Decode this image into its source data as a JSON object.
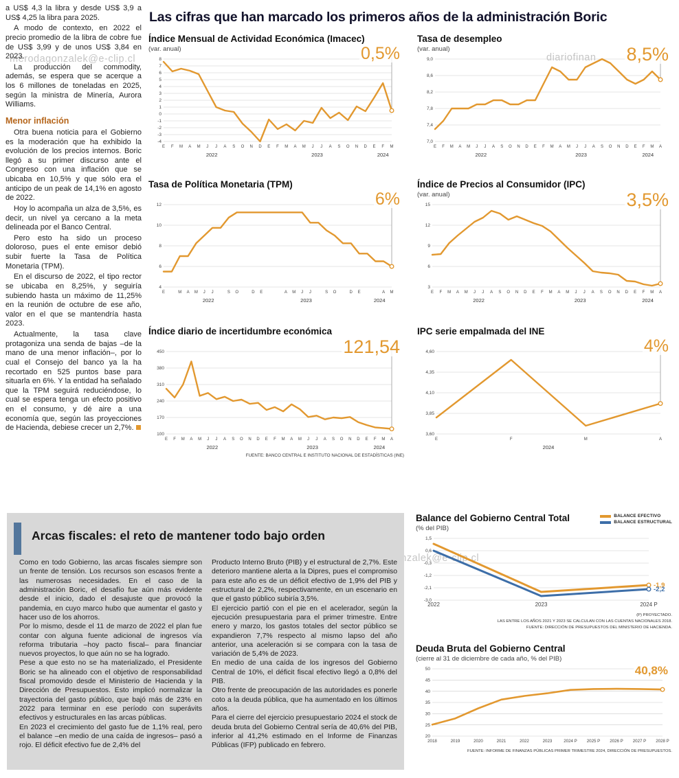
{
  "colors": {
    "accent_orange": "#E2982F",
    "accent_blue": "#3D6EA8",
    "panel_gray": "#D8D8D8",
    "header_blue": "#53769C"
  },
  "watermarks": {
    "wm1": "merodagonzalek@e-clip.cl",
    "wm2": "diariofinan",
    "wm3": "ero#dagonzalek@e-clip.cl"
  },
  "left_column": {
    "p1": "a US$ 4,3 la libra y desde US$ 3,9 a US$ 4,25 la libra para 2025.",
    "p2": "A modo de contexto, en 2022 el precio promedio de la libra de cobre fue de US$ 3,99 y de unos US$ 3,84 en 2023.",
    "p3": "La producción del commodity, además, se espera que se acerque a los 6 millones de toneladas en 2025, según la ministra de Minería, Aurora Williams.",
    "heading": "Menor inflación",
    "p4": "Otra buena noticia para el Gobierno es la moderación que ha exhibido la evolución de los precios internos. Boric llegó a su primer discurso ante el Congreso con una inflación que se ubicaba en 10,5% y que sólo era el anticipo de un peak de 14,1% en agosto de 2022.",
    "p5": "Hoy lo acompaña un alza de 3,5%, es decir, un nivel ya cercano a la meta delineada por el Banco Central.",
    "p6": "Pero esto ha sido un proceso doloroso, pues el ente emisor debió subir fuerte la Tasa de Política Monetaria (TPM).",
    "p7": "En el discurso de 2022, el tipo rector se ubicaba en 8,25%, y seguiría subiendo hasta un máximo de 11,25% en la reunión de octubre de ese año, valor en el que se mantendría hasta 2023.",
    "p8": "Actualmente, la tasa clave protagoniza una senda de bajas –de la mano de una menor inflación–, por lo cual el Consejo del banco ya la ha recortado en 525 puntos base para situarla en 6%. Y la entidad ha señalado que la TPM seguirá reduciéndose, lo cual se espera tenga un efecto positivo en el consumo, y dé aire a una economía que, según las proyecciones de Hacienda, debiese crecer un 2,7%."
  },
  "main": {
    "title": "Las cifras que han marcado los primeros años de la administración Boric",
    "source": "FUENTE: BANCO CENTRAL E INSTITUTO NACIONAL DE ESTADÍSTICAS (INE)"
  },
  "fiscal": {
    "title": "Arcas fiscales: el reto de mantener todo bajo orden",
    "c1p1": "Como en todo Gobierno, las arcas fiscales siempre son un frente de tensión. Los recursos son escasos frente a las numerosas necesidades. En el caso de la administración Boric, el desafío fue aún más evidente desde el inicio, dado el desajuste que provocó la pandemia, en cuyo marco hubo que aumentar el gasto y hacer uso de los ahorros.",
    "c1p2": "Por lo mismo, desde el 11 de marzo de 2022 el plan fue contar con alguna fuente adicional de ingresos vía reforma tributaria –hoy pacto fiscal– para financiar nuevos proyectos, lo que aún no se ha logrado.",
    "c1p3": "Pese a que esto no se ha materializado, el Presidente Boric se ha alineado con el objetivo de responsabilidad fiscal promovido desde el Ministerio de Hacienda y la Dirección de Presupuestos. Esto implicó normalizar la trayectoria del gasto público, que bajó más de 23% en 2022 para terminar en ese período con superávits efectivos y estructurales en las arcas públicas.",
    "c1p4": "En 2023 el crecimiento del gasto fue de 1,1% real, pero el balance –en medio de una caída de ingresos– pasó a rojo. El déficit efectivo fue de 2,4% del",
    "c2p1": "Producto Interno Bruto (PIB) y el estructural de 2,7%. Este deterioro mantiene alerta a la Dipres, pues el compromiso para este año es de un déficit efectivo de 1,9% del PIB y estructural de 2,2%, respectivamente, en un escenario en que el gasto público subiría 3,5%.",
    "c2p2": "El ejercicio partió con el pie en el acelerador, según la ejecución presupuestaria para el primer trimestre. Entre enero y marzo, los gastos totales del sector público se expandieron 7,7% respecto al mismo lapso del año anterior, una aceleración si se compara con la tasa de variación de 5,4% de 2023.",
    "c2p3": "En medio de una caída de los ingresos del Gobierno Central de 10%, el déficit fiscal efectivo llegó a 0,8% del PIB.",
    "c2p4": "Otro frente de preocupación de las autoridades es ponerle coto a la deuda pública, que ha aumentado en los últimos años.",
    "c2p5": "Para el cierre del ejercicio presupuestario 2024 el stock de deuda bruta del Gobierno Central sería de 40,6% del PIB, inferior al 41,2% estimado en el Informe de Finanzas Públicas (IFP) publicado en febrero."
  },
  "chart_data": [
    {
      "type": "line",
      "title": "Índice Mensual de Actividad Económica (Imacec)",
      "subtitle": "(var. anual)",
      "highlight": "0,5%",
      "ylim": [
        -4,
        8
      ],
      "y_ticks": [
        -4,
        -3,
        -2,
        -1,
        0,
        1,
        2,
        3,
        4,
        5,
        6,
        7,
        8
      ],
      "y_tick_labels": [
        "-4",
        "-3",
        "-2",
        "-1",
        "0",
        "1",
        "2",
        "3",
        "4",
        "5",
        "6",
        "7",
        "8"
      ],
      "x_labels": [
        "E",
        "F",
        "M",
        "A",
        "M",
        "J",
        "J",
        "A",
        "S",
        "O",
        "N",
        "D",
        "E",
        "F",
        "M",
        "A",
        "M",
        "J",
        "J",
        "A",
        "S",
        "O",
        "N",
        "D",
        "E",
        "F",
        "M"
      ],
      "years": [
        {
          "label": "2022",
          "index": 5.5
        },
        {
          "label": "2023",
          "index": 17.5
        },
        {
          "label": "2024",
          "index": 25
        }
      ],
      "pad_l": 22,
      "marker_line": true,
      "series": [
        {
          "name": "Imacec",
          "color": "#E2982F",
          "values": [
            7.6,
            6.2,
            6.6,
            6.3,
            5.8,
            3.4,
            1.0,
            0.5,
            0.3,
            -1.4,
            -2.6,
            -4.0,
            -0.8,
            -2.2,
            -1.5,
            -2.4,
            -1.0,
            -1.3,
            0.9,
            -0.6,
            0.2,
            -0.9,
            1.1,
            0.4,
            2.4,
            4.5,
            0.5
          ]
        }
      ]
    },
    {
      "type": "line",
      "title": "Tasa de desempleo",
      "subtitle": "(var. anual)",
      "highlight": "8,5%",
      "ylim": [
        7.0,
        9.0
      ],
      "y_ticks": [
        7.0,
        7.4,
        7.8,
        8.2,
        8.6,
        9.0
      ],
      "y_tick_labels": [
        "7,0",
        "7,4",
        "7,8",
        "8,2",
        "8,6",
        "9,0"
      ],
      "x_labels": [
        "E",
        "F",
        "M",
        "A",
        "M",
        "J",
        "J",
        "A",
        "S",
        "O",
        "N",
        "D",
        "E",
        "F",
        "M",
        "A",
        "M",
        "J",
        "J",
        "A",
        "S",
        "O",
        "N",
        "D",
        "E",
        "F",
        "M",
        "A"
      ],
      "years": [
        {
          "label": "2022",
          "index": 5.5
        },
        {
          "label": "2023",
          "index": 17.5
        },
        {
          "label": "2024",
          "index": 25.5
        }
      ],
      "pad_l": 26,
      "marker_line": true,
      "series": [
        {
          "name": "Desempleo",
          "color": "#E2982F",
          "values": [
            7.3,
            7.5,
            7.8,
            7.8,
            7.8,
            7.9,
            7.9,
            8.0,
            8.0,
            7.9,
            7.9,
            8.0,
            8.0,
            8.4,
            8.8,
            8.7,
            8.5,
            8.5,
            8.8,
            8.9,
            9.0,
            8.9,
            8.7,
            8.5,
            8.4,
            8.5,
            8.7,
            8.5
          ]
        }
      ]
    },
    {
      "type": "line",
      "title": "Tasa de Política Monetaria (TPM)",
      "subtitle": "",
      "highlight": "6%",
      "ylim": [
        4,
        12
      ],
      "y_ticks": [
        4,
        6,
        8,
        10,
        12
      ],
      "y_tick_labels": [
        "4",
        "6",
        "8",
        "10",
        "12"
      ],
      "x_labels": [
        "E",
        "",
        "M",
        "A",
        "M",
        "J",
        "J",
        "",
        "S",
        "O",
        "",
        "D",
        "E",
        "",
        "",
        "A",
        "M",
        "J",
        "J",
        "",
        "S",
        "O",
        "",
        "D",
        "E",
        "",
        "",
        "A",
        "M"
      ],
      "years": [
        {
          "label": "2022",
          "index": 5.5
        },
        {
          "label": "2023",
          "index": 17.5
        },
        {
          "label": "2024",
          "index": 26.5
        }
      ],
      "pad_l": 22,
      "marker_line": true,
      "series": [
        {
          "name": "TPM",
          "color": "#E2982F",
          "values": [
            5.5,
            5.5,
            7.0,
            7.0,
            8.25,
            9.0,
            9.75,
            9.75,
            10.75,
            11.25,
            11.25,
            11.25,
            11.25,
            11.25,
            11.25,
            11.25,
            11.25,
            11.25,
            10.25,
            10.25,
            9.5,
            9.0,
            8.25,
            8.25,
            7.25,
            7.25,
            6.5,
            6.5,
            6.0
          ]
        }
      ]
    },
    {
      "type": "line",
      "title": "Índice de Precios al Consumidor (IPC)",
      "subtitle": "(var. anual)",
      "highlight": "3,5%",
      "ylim": [
        3,
        15
      ],
      "y_ticks": [
        3,
        6,
        9,
        12,
        15
      ],
      "y_tick_labels": [
        "3",
        "6",
        "9",
        "12",
        "15"
      ],
      "x_labels": [
        "E",
        "F",
        "M",
        "A",
        "M",
        "J",
        "J",
        "A",
        "S",
        "O",
        "N",
        "D",
        "E",
        "F",
        "M",
        "A",
        "M",
        "J",
        "J",
        "A",
        "S",
        "O",
        "N",
        "D",
        "E",
        "F",
        "M",
        "A"
      ],
      "years": [
        {
          "label": "2022",
          "index": 5.5
        },
        {
          "label": "2023",
          "index": 17.5
        },
        {
          "label": "2024",
          "index": 25.5
        }
      ],
      "pad_l": 22,
      "marker_line": true,
      "series": [
        {
          "name": "IPC",
          "color": "#E2982F",
          "values": [
            7.7,
            7.8,
            9.4,
            10.5,
            11.5,
            12.5,
            13.1,
            14.1,
            13.7,
            12.8,
            13.3,
            12.8,
            12.3,
            11.9,
            11.1,
            9.9,
            8.7,
            7.6,
            6.5,
            5.3,
            5.1,
            5.0,
            4.8,
            3.9,
            3.8,
            3.4,
            3.2,
            3.5
          ]
        }
      ]
    },
    {
      "type": "line",
      "title": "Índice diario de incertidumbre económica",
      "subtitle": "",
      "highlight": "121,54",
      "ylim": [
        100,
        450
      ],
      "y_ticks": [
        100,
        170,
        240,
        310,
        380,
        450
      ],
      "y_tick_labels": [
        "100",
        "170",
        "240",
        "310",
        "380",
        "450"
      ],
      "x_labels": [
        "E",
        "F",
        "M",
        "A",
        "M",
        "J",
        "J",
        "A",
        "S",
        "O",
        "N",
        "D",
        "E",
        "F",
        "M",
        "A",
        "M",
        "J",
        "J",
        "A",
        "S",
        "O",
        "N",
        "D",
        "E",
        "F",
        "M",
        "A"
      ],
      "years": [
        {
          "label": "2022",
          "index": 5.5
        },
        {
          "label": "2023",
          "index": 17.5
        },
        {
          "label": "2024",
          "index": 25.5
        }
      ],
      "pad_l": 26,
      "marker_line": true,
      "series": [
        {
          "name": "Incertidumbre",
          "color": "#E2982F",
          "values": [
            292,
            255,
            310,
            408,
            262,
            274,
            248,
            258,
            240,
            246,
            228,
            232,
            202,
            214,
            196,
            226,
            205,
            172,
            178,
            162,
            170,
            167,
            172,
            150,
            138,
            128,
            125,
            121.54
          ]
        }
      ]
    },
    {
      "type": "line",
      "title": "IPC serie empalmada del INE",
      "subtitle": "",
      "highlight": "4%",
      "ylim": [
        3.6,
        4.6
      ],
      "y_ticks": [
        3.6,
        3.85,
        4.1,
        4.35,
        4.6
      ],
      "y_tick_labels": [
        "3,60",
        "3,85",
        "4,10",
        "4,35",
        "4,60"
      ],
      "x_labels": [
        "E",
        "F",
        "M",
        "A"
      ],
      "years": [
        {
          "label": "2024",
          "index": 1.5
        }
      ],
      "pad_l": 28,
      "marker_line": true,
      "series": [
        {
          "name": "IPC empalmada",
          "color": "#E2982F",
          "values": [
            3.8,
            4.5,
            3.7,
            3.97
          ]
        }
      ]
    },
    {
      "type": "line",
      "title": "Balance del Gobierno Central Total",
      "subtitle": "(% del PIB)",
      "highlight": "",
      "ylim": [
        -3.0,
        1.5
      ],
      "y_ticks": [
        1.5,
        0.6,
        -0.3,
        -1.2,
        -2.1,
        -3.0
      ],
      "y_tick_labels": [
        "1,5",
        "0,6",
        "-0,3",
        "-1,2",
        "-2,1",
        "-3,0"
      ],
      "x_labels": [
        "2022",
        "2023",
        "2024 P"
      ],
      "pad_l": 26,
      "pad_r": 34,
      "x_fs": 8,
      "marker_line": false,
      "series": [
        {
          "name": "BALANCE EFECTIVO",
          "color": "#E2982F",
          "width": 3,
          "end_label": "-1,9",
          "values": [
            1.1,
            -2.4,
            -1.9
          ]
        },
        {
          "name": "BALANCE ESTRUCTURAL",
          "color": "#3D6EA8",
          "width": 3,
          "end_label": "-2,2",
          "values": [
            0.6,
            -2.7,
            -2.2
          ]
        }
      ],
      "footnotes": [
        "(P) PROYECTADO.",
        "LAS ENTRE LOS AÑOS 2021 Y 2023 SE CALCULAN  CON LAS CUENTAS NACIONALES 2018.",
        "FUENTE: DIRECCIÓN DE PRESUPUESTOS DEL MINISTERIO DE HACIENDA."
      ]
    },
    {
      "type": "line",
      "title": "Deuda Bruta del Gobierno Central",
      "subtitle": "(cierre al 31 de diciembre de cada año, % del PIB)",
      "highlight": "40,8%",
      "ylim": [
        20,
        50
      ],
      "y_ticks": [
        20,
        25,
        30,
        35,
        40,
        45,
        50
      ],
      "y_tick_labels": [
        "20",
        "25",
        "30",
        "35",
        "40",
        "45",
        "50"
      ],
      "x_labels": [
        "2018",
        "2019",
        "2020",
        "2021",
        "2022",
        "2023",
        "2024 P",
        "2025 P",
        "2026 P",
        "2027 P",
        "2028 P"
      ],
      "pad_l": 24,
      "x_fs": 6.2,
      "marker_line": false,
      "series": [
        {
          "name": "Deuda bruta",
          "color": "#E2982F",
          "width": 2.6,
          "values": [
            25.1,
            27.9,
            32.4,
            36.3,
            37.9,
            39.1,
            40.6,
            41.0,
            41.1,
            41.0,
            40.8
          ]
        }
      ],
      "footnote": "FUENTE: INFORME DE FINANZAS PÚBLICAS PRIMER TRIMESTRE 2024, DIRECCIÓN DE PRESUPUESTOS."
    }
  ]
}
